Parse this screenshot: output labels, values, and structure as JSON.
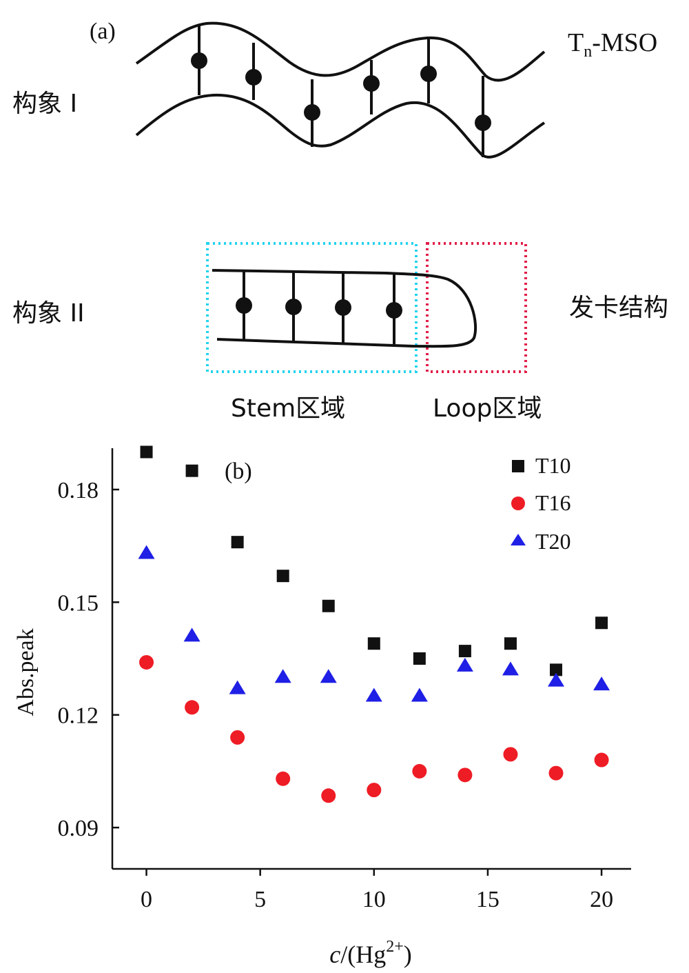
{
  "panel_a": {
    "label": "(a)",
    "title": "Tn-MSO",
    "title_main": "T",
    "title_sub": "n",
    "title_suffix": "-MSO",
    "conformation_1": "构象 I",
    "conformation_2": "构象 II",
    "structure_label": "发卡结构",
    "stem_label": "Stem区域",
    "loop_label": "Loop区域",
    "stem_box_color": "#22d3ee",
    "loop_box_color": "#e11d48"
  },
  "chart_data": {
    "type": "scatter",
    "panel_label": "(b)",
    "xlabel": "c/(Hg2+)",
    "xlabel_italic": "c",
    "xlabel_rest": "/(Hg",
    "xlabel_sup": "2+",
    "xlabel_close": ")",
    "ylabel": "Abs.peak",
    "xlim": [
      -1.5,
      21.3
    ],
    "ylim": [
      0.079,
      0.191
    ],
    "xticks": [
      0,
      5,
      10,
      15,
      20
    ],
    "xtick_labels": [
      "0",
      "5",
      "10",
      "15",
      "20"
    ],
    "yticks": [
      0.09,
      0.12,
      0.15,
      0.18
    ],
    "ytick_labels": [
      "0.09",
      "0.12",
      "0.15",
      "0.18"
    ],
    "legend_position": "top-right",
    "grid": false,
    "x": [
      0,
      2,
      4,
      6,
      8,
      10,
      12,
      14,
      16,
      18,
      20
    ],
    "series": [
      {
        "name": "T10",
        "marker": "square",
        "color": "#111111",
        "values": [
          0.19,
          0.185,
          0.166,
          0.157,
          0.149,
          0.139,
          0.135,
          0.137,
          0.139,
          0.132,
          0.1445
        ]
      },
      {
        "name": "T16",
        "marker": "circle",
        "color": "#ee1c25",
        "values": [
          0.134,
          0.122,
          0.114,
          0.103,
          0.0985,
          0.1,
          0.105,
          0.104,
          0.1095,
          0.1045,
          0.108
        ]
      },
      {
        "name": "T20",
        "marker": "triangle",
        "color": "#1f1fe6",
        "values": [
          0.163,
          0.141,
          0.127,
          0.13,
          0.13,
          0.125,
          0.125,
          0.133,
          0.132,
          0.129,
          0.128
        ]
      }
    ]
  }
}
